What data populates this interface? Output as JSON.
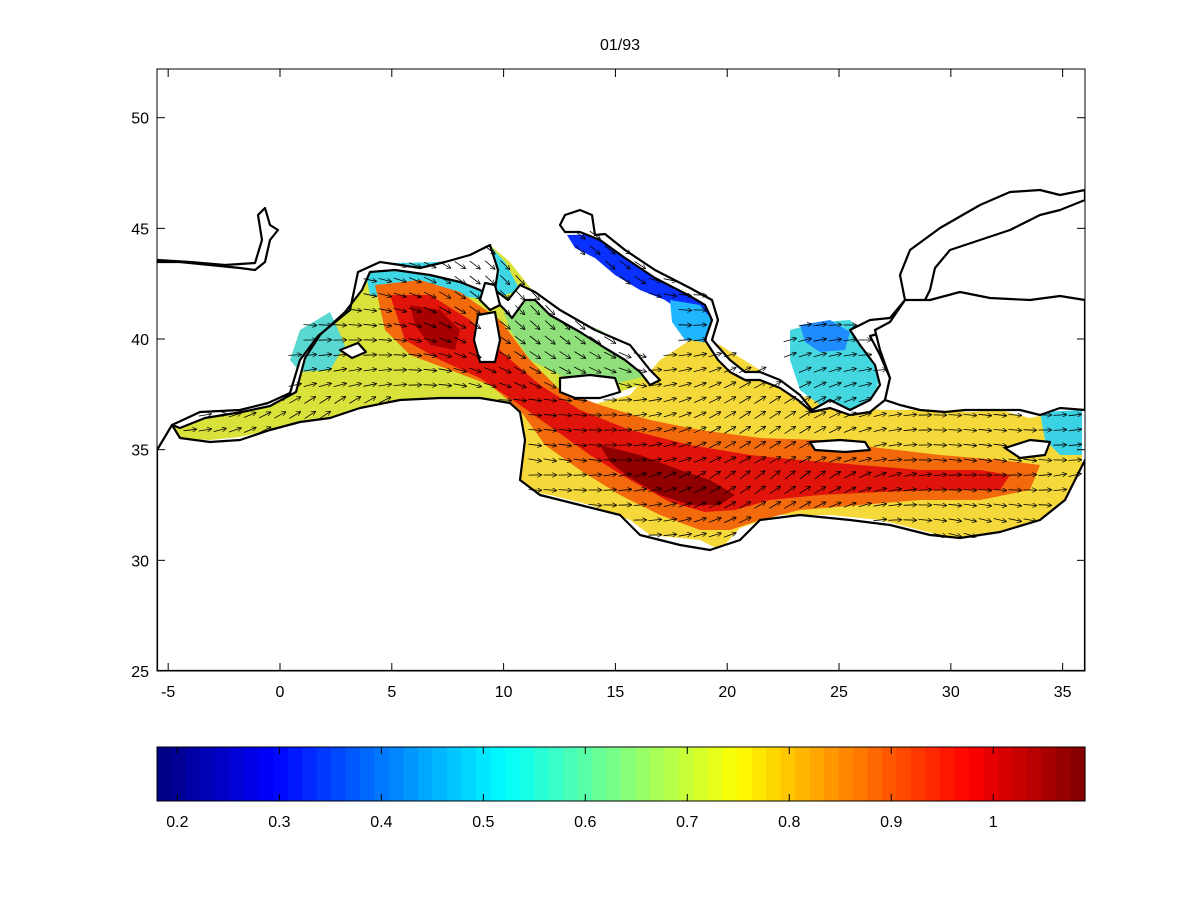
{
  "figure": {
    "title": "01/93"
  },
  "map_data": {
    "type": "heatmap",
    "region": "Mediterranean Sea",
    "title": "01/93",
    "xlim": [
      -5.5,
      36
    ],
    "ylim": [
      25,
      52.2
    ],
    "xticks": [
      -5,
      0,
      5,
      10,
      15,
      20,
      25,
      30,
      35
    ],
    "yticks": [
      25,
      30,
      35,
      40,
      45,
      50
    ],
    "overlay": "velocity-vector-arrows",
    "colormap": "jet",
    "colorbar": {
      "range": [
        0.18,
        1.09
      ],
      "ticks": [
        0.2,
        0.3,
        0.4,
        0.5,
        0.6,
        0.7,
        0.8,
        0.9,
        1
      ],
      "tick_labels": [
        "0.2",
        "0.3",
        "0.4",
        "0.5",
        "0.6",
        "0.7",
        "0.8",
        "0.9",
        "1"
      ],
      "orientation": "horizontal",
      "placement": "bottom"
    }
  }
}
